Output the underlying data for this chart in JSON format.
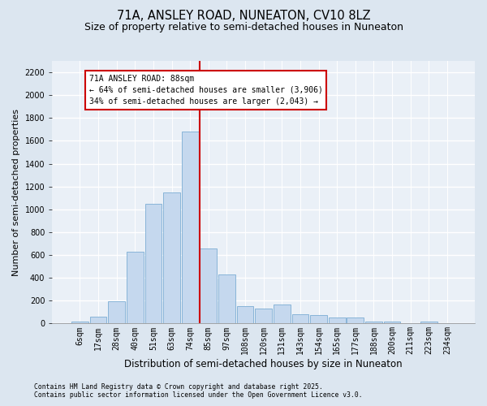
{
  "title": "71A, ANSLEY ROAD, NUNEATON, CV10 8LZ",
  "subtitle": "Size of property relative to semi-detached houses in Nuneaton",
  "xlabel": "Distribution of semi-detached houses by size in Nuneaton",
  "ylabel": "Number of semi-detached properties",
  "footnote1": "Contains HM Land Registry data © Crown copyright and database right 2025.",
  "footnote2": "Contains public sector information licensed under the Open Government Licence v3.0.",
  "bar_labels": [
    "6sqm",
    "17sqm",
    "28sqm",
    "40sqm",
    "51sqm",
    "63sqm",
    "74sqm",
    "85sqm",
    "97sqm",
    "108sqm",
    "120sqm",
    "131sqm",
    "143sqm",
    "154sqm",
    "165sqm",
    "177sqm",
    "188sqm",
    "200sqm",
    "211sqm",
    "223sqm",
    "234sqm"
  ],
  "bar_heights": [
    18,
    58,
    195,
    630,
    1050,
    1150,
    1680,
    655,
    430,
    155,
    130,
    165,
    80,
    75,
    55,
    55,
    18,
    18,
    4,
    18,
    4
  ],
  "bar_color": "#c5d8ee",
  "bar_edge_color": "#7badd4",
  "vline_color": "#cc0000",
  "vline_bar_index": 7,
  "annotation_title": "71A ANSLEY ROAD: 88sqm",
  "annotation_line2": "← 64% of semi-detached houses are smaller (3,906)",
  "annotation_line3": "34% of semi-detached houses are larger (2,043) →",
  "annotation_box_color": "white",
  "annotation_box_edgecolor": "#cc0000",
  "ylim": [
    0,
    2300
  ],
  "yticks": [
    0,
    200,
    400,
    600,
    800,
    1000,
    1200,
    1400,
    1600,
    1800,
    2000,
    2200
  ],
  "bg_color": "#dce6f0",
  "plot_bg_color": "#eaf0f7",
  "grid_color": "white",
  "title_fontsize": 10.5,
  "subtitle_fontsize": 9,
  "ylabel_fontsize": 8,
  "xlabel_fontsize": 8.5,
  "tick_fontsize": 7,
  "annot_fontsize": 7,
  "footnote_fontsize": 5.8
}
